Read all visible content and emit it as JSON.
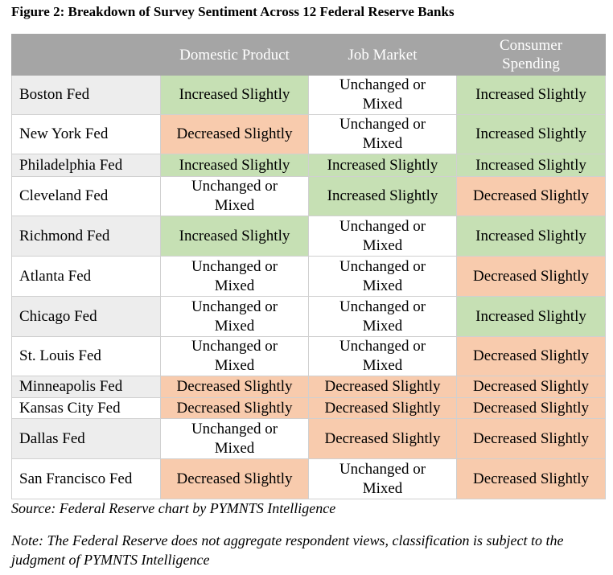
{
  "title": "Figure 2: Breakdown of Survey Sentiment Across 12 Federal Reserve Banks",
  "columns": [
    "",
    "Domestic Product",
    "Job Market",
    "Consumer Spending"
  ],
  "colors": {
    "header": "#a5a5a5",
    "increased": "#c6e0b4",
    "decreased": "#f8cbad",
    "unchanged": "#ffffff",
    "bank_alt": "#ededed"
  },
  "rows": [
    {
      "bank": "Boston Fed",
      "values": [
        "Increased Slightly",
        "Unchanged or Mixed",
        "Increased Slightly"
      ]
    },
    {
      "bank": "New York Fed",
      "values": [
        "Decreased Slightly",
        "Unchanged or Mixed",
        "Increased Slightly"
      ]
    },
    {
      "bank": "Philadelphia Fed",
      "values": [
        "Increased Slightly",
        "Increased Slightly",
        "Increased Slightly"
      ]
    },
    {
      "bank": "Cleveland Fed",
      "values": [
        "Unchanged or Mixed",
        "Increased Slightly",
        "Decreased Slightly"
      ]
    },
    {
      "bank": "Richmond Fed",
      "values": [
        "Increased Slightly",
        "Unchanged or Mixed",
        "Increased Slightly"
      ]
    },
    {
      "bank": "Atlanta Fed",
      "values": [
        "Unchanged or Mixed",
        "Unchanged or Mixed",
        "Decreased Slightly"
      ]
    },
    {
      "bank": "Chicago Fed",
      "values": [
        "Unchanged or Mixed",
        "Unchanged or Mixed",
        "Increased Slightly"
      ]
    },
    {
      "bank": "St. Louis Fed",
      "values": [
        "Unchanged or Mixed",
        "Unchanged or Mixed",
        "Decreased Slightly"
      ]
    },
    {
      "bank": "Minneapolis Fed",
      "values": [
        "Decreased Slightly",
        "Decreased Slightly",
        "Decreased Slightly"
      ]
    },
    {
      "bank": "Kansas City Fed",
      "values": [
        "Decreased Slightly",
        "Decreased Slightly",
        "Decreased Slightly"
      ]
    },
    {
      "bank": "Dallas Fed",
      "values": [
        "Unchanged or Mixed",
        "Decreased Slightly",
        "Decreased Slightly"
      ]
    },
    {
      "bank": "San Francisco Fed",
      "values": [
        "Decreased Slightly",
        "Unchanged or Mixed",
        "Decreased Slightly"
      ]
    }
  ],
  "source": "Source: Federal Reserve chart by PYMNTS Intelligence",
  "note": "Note: The Federal Reserve does not aggregate respondent views, classification is subject to the judgment of PYMNTS Intelligence"
}
